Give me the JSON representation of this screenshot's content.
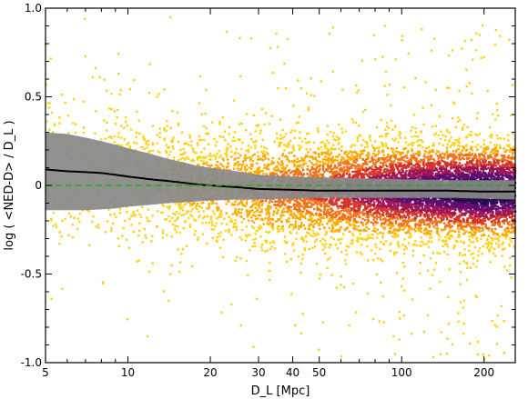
{
  "chart_data": {
    "type": "scatter",
    "xlabel": "D_L [Mpc]",
    "ylabel": "log ( <NED-D> / D_L )",
    "x_scale": "log",
    "xlim": [
      5,
      260
    ],
    "ylim": [
      -1.0,
      1.0
    ],
    "x_ticks": [
      {
        "value": 5,
        "label": "5"
      },
      {
        "value": 10,
        "label": "10"
      },
      {
        "value": 20,
        "label": "20"
      },
      {
        "value": 30,
        "label": "30"
      },
      {
        "value": 40,
        "label": "40"
      },
      {
        "value": 50,
        "label": "50"
      },
      {
        "value": 100,
        "label": "100"
      },
      {
        "value": 200,
        "label": "200"
      }
    ],
    "y_ticks": [
      {
        "value": 1.0,
        "label": "1.0"
      },
      {
        "value": 0.5,
        "label": "0.5"
      },
      {
        "value": 0.0,
        "label": "0"
      },
      {
        "value": -0.5,
        "label": "-0.5"
      },
      {
        "value": -1.0,
        "label": "-1.0"
      }
    ],
    "grid": false,
    "legend": "none",
    "reference_line": {
      "y": 0.0,
      "style": "dashed",
      "color": "#22aa22"
    },
    "median_curve": {
      "color": "#000000",
      "x": [
        5,
        6,
        7,
        8,
        9,
        10,
        12,
        14,
        16,
        18,
        20,
        25,
        30,
        40,
        50,
        70,
        100,
        150,
        200,
        260
      ],
      "y": [
        0.09,
        0.08,
        0.075,
        0.07,
        0.06,
        0.05,
        0.035,
        0.025,
        0.015,
        0.005,
        0.0,
        -0.01,
        -0.02,
        -0.025,
        -0.03,
        -0.03,
        -0.03,
        -0.03,
        -0.035,
        -0.035
      ]
    },
    "scatter_band": {
      "color": "#888888",
      "x": [
        5,
        6,
        7,
        8,
        9,
        10,
        12,
        14,
        16,
        18,
        20,
        25,
        30,
        40,
        50,
        70,
        100,
        150,
        200,
        260
      ],
      "upper": [
        0.3,
        0.29,
        0.27,
        0.25,
        0.23,
        0.21,
        0.18,
        0.15,
        0.13,
        0.11,
        0.1,
        0.08,
        0.06,
        0.05,
        0.045,
        0.04,
        0.035,
        0.03,
        0.03,
        0.03
      ],
      "lower": [
        -0.14,
        -0.14,
        -0.14,
        -0.135,
        -0.13,
        -0.12,
        -0.11,
        -0.1,
        -0.095,
        -0.09,
        -0.085,
        -0.08,
        -0.08,
        -0.075,
        -0.07,
        -0.07,
        -0.07,
        -0.07,
        -0.075,
        -0.08
      ]
    },
    "point_colors": [
      "#ffd21a",
      "#ffaa00",
      "#f07418",
      "#d2352b",
      "#9c1657",
      "#5f0d6e",
      "#2a0a4e"
    ],
    "point_density_profile": {
      "x": [
        5,
        10,
        20,
        50,
        100,
        200,
        260
      ],
      "relative_density": [
        0.05,
        0.12,
        0.2,
        0.45,
        0.8,
        1.0,
        0.9
      ],
      "y_spread": [
        0.22,
        0.2,
        0.16,
        0.14,
        0.13,
        0.13,
        0.13
      ]
    }
  }
}
